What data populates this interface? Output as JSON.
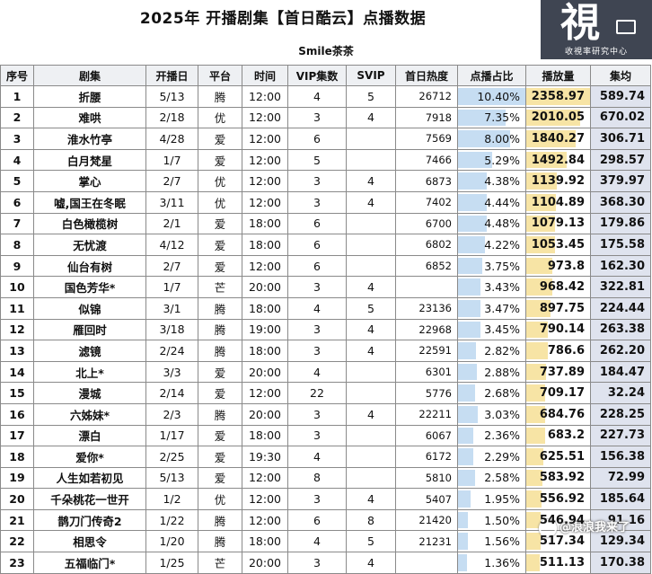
{
  "title": "2025年 开播剧集【首日酷云】点播数据",
  "subtitle": "Smile茶茶",
  "logo": {
    "glyph": "視",
    "caption": "收視率研究中心"
  },
  "watermark": "@浪浪我来了",
  "headers": [
    "序号",
    "剧集",
    "开播日",
    "平台",
    "时间",
    "VIP集数",
    "SVIP",
    "首日热度",
    "点播占比",
    "播放量",
    "集均"
  ],
  "rows": [
    {
      "idx": "1",
      "title": "折腰",
      "date": "5/13",
      "platform": "腾",
      "time": "12:00",
      "vip": "4",
      "svip": "5",
      "heat": "26712",
      "share": "10.40%",
      "views": "2358.97",
      "avg": "589.74"
    },
    {
      "idx": "2",
      "title": "难哄",
      "date": "2/18",
      "platform": "优",
      "time": "12:00",
      "vip": "3",
      "svip": "4",
      "heat": "7918",
      "share": "7.35%",
      "views": "2010.05",
      "avg": "670.02"
    },
    {
      "idx": "3",
      "title": "淮水竹亭",
      "date": "4/28",
      "platform": "爱",
      "time": "12:00",
      "vip": "6",
      "svip": "",
      "heat": "7569",
      "share": "8.00%",
      "views": "1840.27",
      "avg": "306.71"
    },
    {
      "idx": "4",
      "title": "白月梵星",
      "date": "1/7",
      "platform": "爱",
      "time": "12:00",
      "vip": "5",
      "svip": "",
      "heat": "7466",
      "share": "5.29%",
      "views": "1492.84",
      "avg": "298.57"
    },
    {
      "idx": "5",
      "title": "掌心",
      "date": "2/7",
      "platform": "优",
      "time": "12:00",
      "vip": "3",
      "svip": "4",
      "heat": "6873",
      "share": "4.38%",
      "views": "1139.92",
      "avg": "379.97"
    },
    {
      "idx": "6",
      "title": "嘘,国王在冬眠",
      "date": "3/11",
      "platform": "优",
      "time": "12:00",
      "vip": "3",
      "svip": "4",
      "heat": "7402",
      "share": "4.44%",
      "views": "1104.89",
      "avg": "368.30"
    },
    {
      "idx": "7",
      "title": "白色橄榄树",
      "date": "2/1",
      "platform": "爱",
      "time": "18:00",
      "vip": "6",
      "svip": "",
      "heat": "6700",
      "share": "4.48%",
      "views": "1079.13",
      "avg": "179.86"
    },
    {
      "idx": "8",
      "title": "无忧渡",
      "date": "4/12",
      "platform": "爱",
      "time": "18:00",
      "vip": "6",
      "svip": "",
      "heat": "6802",
      "share": "4.22%",
      "views": "1053.45",
      "avg": "175.58"
    },
    {
      "idx": "9",
      "title": "仙台有树",
      "date": "2/7",
      "platform": "爱",
      "time": "12:00",
      "vip": "6",
      "svip": "",
      "heat": "6852",
      "share": "3.75%",
      "views": "973.8",
      "avg": "162.30"
    },
    {
      "idx": "10",
      "title": "国色芳华*",
      "date": "1/7",
      "platform": "芒",
      "time": "20:00",
      "vip": "3",
      "svip": "4",
      "heat": "",
      "share": "3.43%",
      "views": "968.42",
      "avg": "322.81"
    },
    {
      "idx": "11",
      "title": "似锦",
      "date": "3/1",
      "platform": "腾",
      "time": "18:00",
      "vip": "4",
      "svip": "5",
      "heat": "23136",
      "share": "3.47%",
      "views": "897.75",
      "avg": "224.44"
    },
    {
      "idx": "12",
      "title": "雁回时",
      "date": "3/18",
      "platform": "腾",
      "time": "19:00",
      "vip": "3",
      "svip": "4",
      "heat": "22968",
      "share": "3.45%",
      "views": "790.14",
      "avg": "263.38"
    },
    {
      "idx": "13",
      "title": "滤镜",
      "date": "2/24",
      "platform": "腾",
      "time": "18:00",
      "vip": "3",
      "svip": "4",
      "heat": "22591",
      "share": "2.82%",
      "views": "786.6",
      "avg": "262.20"
    },
    {
      "idx": "14",
      "title": "北上*",
      "date": "3/3",
      "platform": "爱",
      "time": "20:00",
      "vip": "4",
      "svip": "",
      "heat": "6301",
      "share": "2.88%",
      "views": "737.89",
      "avg": "184.47"
    },
    {
      "idx": "15",
      "title": "漫城",
      "date": "2/14",
      "platform": "爱",
      "time": "12:00",
      "vip": "22",
      "svip": "",
      "heat": "5776",
      "share": "2.68%",
      "views": "709.17",
      "avg": "32.24"
    },
    {
      "idx": "16",
      "title": "六姊妹*",
      "date": "2/3",
      "platform": "腾",
      "time": "20:00",
      "vip": "3",
      "svip": "4",
      "heat": "22211",
      "share": "3.03%",
      "views": "684.76",
      "avg": "228.25"
    },
    {
      "idx": "17",
      "title": "漂白",
      "date": "1/17",
      "platform": "爱",
      "time": "18:00",
      "vip": "3",
      "svip": "",
      "heat": "6067",
      "share": "2.36%",
      "views": "683.2",
      "avg": "227.73"
    },
    {
      "idx": "18",
      "title": "爱你*",
      "date": "2/25",
      "platform": "爱",
      "time": "19:30",
      "vip": "4",
      "svip": "",
      "heat": "6172",
      "share": "2.29%",
      "views": "625.51",
      "avg": "156.38"
    },
    {
      "idx": "19",
      "title": "人生如若初见",
      "date": "5/13",
      "platform": "爱",
      "time": "12:00",
      "vip": "8",
      "svip": "",
      "heat": "5810",
      "share": "2.58%",
      "views": "583.92",
      "avg": "72.99"
    },
    {
      "idx": "20",
      "title": "千朵桃花一世开",
      "date": "1/2",
      "platform": "优",
      "time": "12:00",
      "vip": "3",
      "svip": "4",
      "heat": "5407",
      "share": "1.95%",
      "views": "556.92",
      "avg": "185.64"
    },
    {
      "idx": "21",
      "title": "鹊刀门传奇2",
      "date": "1/22",
      "platform": "腾",
      "time": "12:00",
      "vip": "6",
      "svip": "8",
      "heat": "21420",
      "share": "1.50%",
      "views": "546.94",
      "avg": "91.16"
    },
    {
      "idx": "22",
      "title": "相思令",
      "date": "1/20",
      "platform": "腾",
      "time": "18:00",
      "vip": "4",
      "svip": "5",
      "heat": "21231",
      "share": "1.56%",
      "views": "517.34",
      "avg": "129.34"
    },
    {
      "idx": "23",
      "title": "五福临门*",
      "date": "1/25",
      "platform": "芒",
      "time": "20:00",
      "vip": "3",
      "svip": "4",
      "heat": "",
      "share": "1.36%",
      "views": "511.13",
      "avg": "170.38"
    }
  ],
  "colors": {
    "share_bar": "#c6ddf2",
    "views_bar": "#f7e4a5",
    "avg_bg": "#dfe3ee",
    "header_bg": "#eef0f3"
  }
}
